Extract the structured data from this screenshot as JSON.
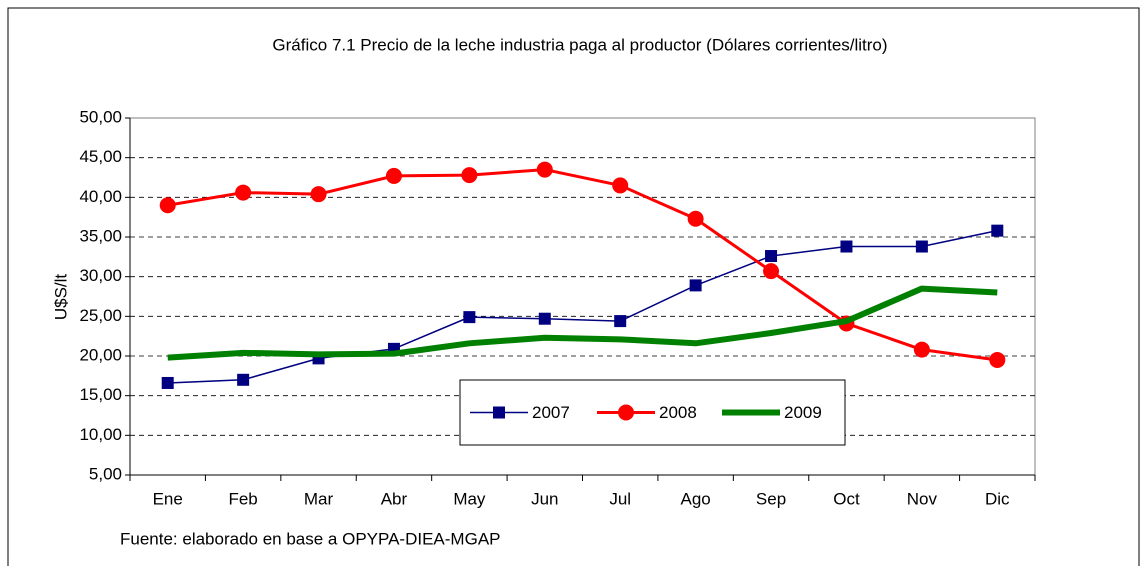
{
  "chart_data": {
    "type": "line",
    "title": "Gráfico 7.1 Precio de la leche industria paga al productor (Dólares corrientes/litro)",
    "ylabel": "U$S/lt",
    "source": "Fuente: elaborado en base a OPYPA-DIEA-MGAP",
    "categories": [
      "Ene",
      "Feb",
      "Mar",
      "Abr",
      "May",
      "Jun",
      "Jul",
      "Ago",
      "Sep",
      "Oct",
      "Nov",
      "Dic"
    ],
    "series": [
      {
        "name": "2007",
        "color": "#000080",
        "marker": "square",
        "width": 1.5,
        "values": [
          16.6,
          17.0,
          19.7,
          20.9,
          24.9,
          24.7,
          24.4,
          28.9,
          32.6,
          33.8,
          33.8,
          35.8
        ]
      },
      {
        "name": "2008",
        "color": "#ff0000",
        "marker": "circle",
        "width": 3,
        "values": [
          39.0,
          40.6,
          40.4,
          42.7,
          42.8,
          43.5,
          41.5,
          37.3,
          30.7,
          24.1,
          20.8,
          19.5
        ]
      },
      {
        "name": "2009",
        "color": "#008000",
        "marker": "none",
        "width": 6,
        "values": [
          19.8,
          20.4,
          20.2,
          20.3,
          21.6,
          22.3,
          22.1,
          21.6,
          22.9,
          24.4,
          28.5,
          28.0
        ]
      }
    ],
    "ylim": [
      5,
      50
    ],
    "yticks": [
      {
        "value": 5,
        "label": "5,00"
      },
      {
        "value": 10,
        "label": "10,00"
      },
      {
        "value": 15,
        "label": "15,00"
      },
      {
        "value": 20,
        "label": "20,00"
      },
      {
        "value": 25,
        "label": "25,00"
      },
      {
        "value": 30,
        "label": "30,00"
      },
      {
        "value": 35,
        "label": "35,00"
      },
      {
        "value": 40,
        "label": "40,00"
      },
      {
        "value": 45,
        "label": "45,00"
      },
      {
        "value": 50,
        "label": "50,00"
      }
    ],
    "grid": true
  }
}
